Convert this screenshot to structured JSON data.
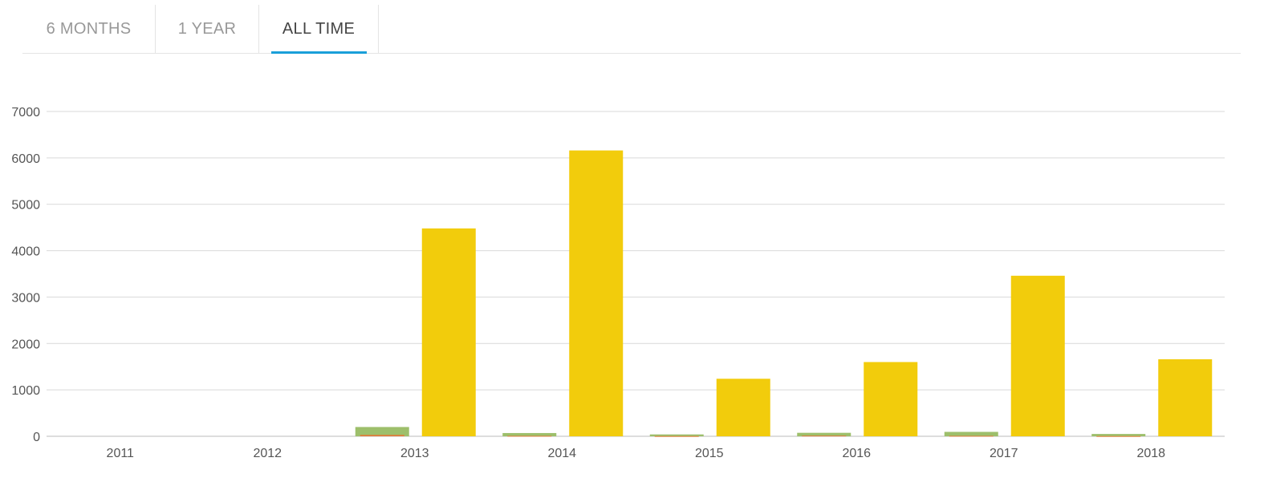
{
  "tabs": [
    {
      "label": "6 MONTHS",
      "active": false
    },
    {
      "label": "1 YEAR",
      "active": false
    },
    {
      "label": "ALL TIME",
      "active": true
    }
  ],
  "colors": {
    "accent": "#1a9fd9",
    "series_yellow": "#f2cc0c",
    "series_green": "#9dbf6b",
    "series_orange": "#e07b39",
    "grid": "#d9d9d9"
  },
  "chart_data": {
    "type": "bar",
    "categories": [
      "2011",
      "2012",
      "2013",
      "2014",
      "2015",
      "2016",
      "2017",
      "2018"
    ],
    "yticks": [
      "0",
      "1000",
      "2000",
      "3000",
      "4000",
      "5000",
      "6000",
      "7000"
    ],
    "ylim": [
      0,
      7000
    ],
    "grid": true,
    "series": [
      {
        "color": "#9dbf6b",
        "values": [
          0,
          0,
          200,
          70,
          40,
          75,
          95,
          50
        ]
      },
      {
        "color": "#e07b39",
        "values": [
          0,
          0,
          30,
          10,
          5,
          15,
          10,
          5
        ]
      },
      {
        "color": "#f2cc0c",
        "values": [
          0,
          0,
          4480,
          6160,
          1240,
          1600,
          3460,
          1660
        ]
      }
    ]
  }
}
